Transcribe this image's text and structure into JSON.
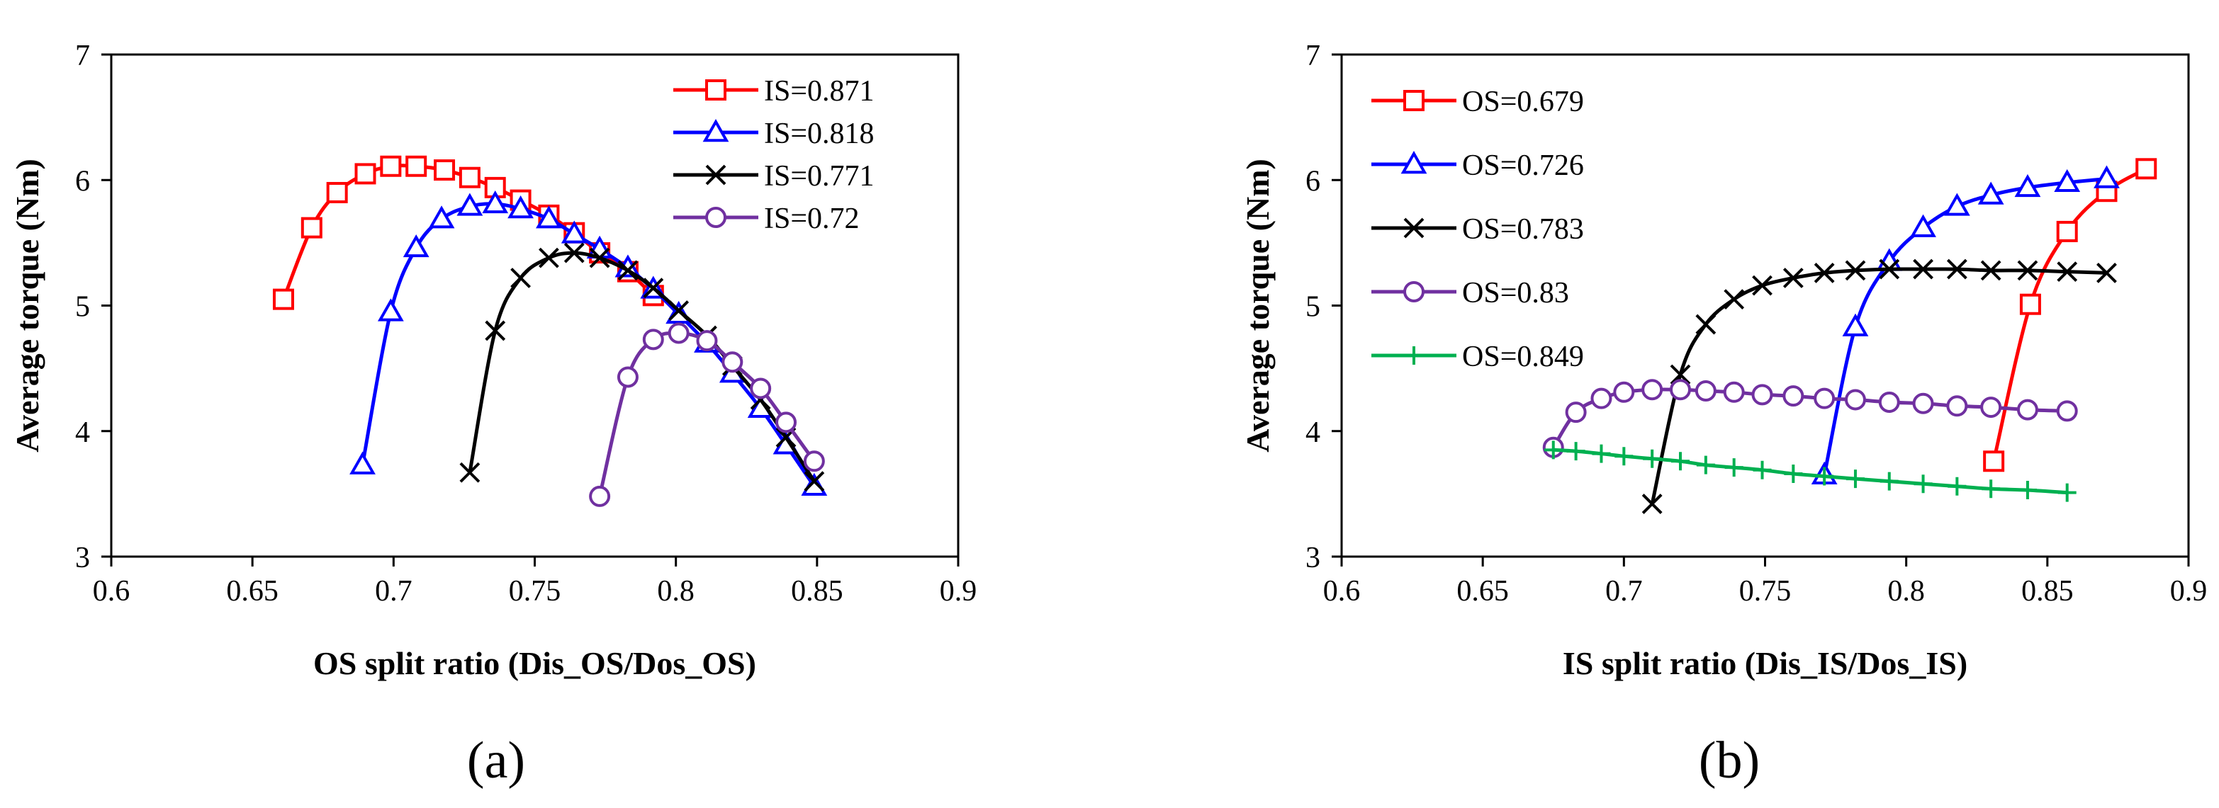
{
  "panels": [
    {
      "label": "(a)"
    },
    {
      "label": "(b)"
    }
  ],
  "chart_data": [
    {
      "type": "line",
      "xlabel": "OS split ratio (Dis_OS/Dos_OS)",
      "ylabel": "Average torque (Nm)",
      "xlim": [
        0.6,
        0.9
      ],
      "ylim": [
        3,
        7
      ],
      "x_ticks": [
        "0.6",
        "0.65",
        "0.7",
        "0.75",
        "0.8",
        "0.85",
        "0.9"
      ],
      "y_ticks": [
        "3",
        "4",
        "5",
        "6",
        "7"
      ],
      "grid": false,
      "legend_position": "top-right",
      "series": [
        {
          "name": "IS=0.871",
          "color": "#ff0000",
          "marker": "square",
          "x": [
            0.661,
            0.671,
            0.68,
            0.69,
            0.699,
            0.708,
            0.718,
            0.727,
            0.736,
            0.745,
            0.755,
            0.764,
            0.773,
            0.783,
            0.792
          ],
          "y": [
            5.05,
            5.62,
            5.9,
            6.05,
            6.11,
            6.11,
            6.08,
            6.02,
            5.94,
            5.84,
            5.72,
            5.58,
            5.42,
            5.27,
            5.08
          ]
        },
        {
          "name": "IS=0.818",
          "color": "#0000ff",
          "marker": "triangle",
          "x": [
            0.689,
            0.699,
            0.708,
            0.717,
            0.727,
            0.736,
            0.745,
            0.755,
            0.764,
            0.773,
            0.783,
            0.792,
            0.801,
            0.811,
            0.82,
            0.83,
            0.839,
            0.849
          ],
          "y": [
            3.73,
            4.95,
            5.46,
            5.69,
            5.79,
            5.81,
            5.77,
            5.69,
            5.57,
            5.45,
            5.3,
            5.13,
            4.93,
            4.7,
            4.46,
            4.18,
            3.89,
            3.56
          ]
        },
        {
          "name": "IS=0.771",
          "color": "#000000",
          "marker": "x",
          "x": [
            0.727,
            0.736,
            0.745,
            0.755,
            0.764,
            0.773,
            0.783,
            0.792,
            0.801,
            0.811,
            0.82,
            0.83,
            0.839,
            0.849
          ],
          "y": [
            3.67,
            4.8,
            5.22,
            5.38,
            5.42,
            5.38,
            5.28,
            5.14,
            4.96,
            4.76,
            4.52,
            4.25,
            3.95,
            3.6
          ]
        },
        {
          "name": "IS=0.72",
          "color": "#7030a0",
          "marker": "circle",
          "x": [
            0.773,
            0.783,
            0.792,
            0.801,
            0.811,
            0.82,
            0.83,
            0.839,
            0.849
          ],
          "y": [
            3.48,
            4.43,
            4.73,
            4.78,
            4.72,
            4.55,
            4.34,
            4.07,
            3.76
          ]
        }
      ]
    },
    {
      "type": "line",
      "xlabel": "IS split ratio (Dis_IS/Dos_IS)",
      "ylabel": "Average torque (Nm)",
      "xlim": [
        0.6,
        0.9
      ],
      "ylim": [
        3,
        7
      ],
      "x_ticks": [
        "0.6",
        "0.65",
        "0.7",
        "0.75",
        "0.8",
        "0.85",
        "0.9"
      ],
      "y_ticks": [
        "3",
        "4",
        "5",
        "6",
        "7"
      ],
      "grid": false,
      "legend_position": "top-left",
      "series": [
        {
          "name": "OS=0.679",
          "color": "#ff0000",
          "marker": "square",
          "x": [
            0.831,
            0.844,
            0.857,
            0.871,
            0.885
          ],
          "y": [
            3.76,
            5.01,
            5.59,
            5.91,
            6.09
          ]
        },
        {
          "name": "OS=0.726",
          "color": "#0000ff",
          "marker": "triangle",
          "x": [
            0.771,
            0.782,
            0.794,
            0.806,
            0.818,
            0.83,
            0.843,
            0.857,
            0.871
          ],
          "y": [
            3.65,
            4.83,
            5.35,
            5.62,
            5.79,
            5.88,
            5.94,
            5.98,
            6.01
          ]
        },
        {
          "name": "OS=0.783",
          "color": "#000000",
          "marker": "x",
          "x": [
            0.71,
            0.72,
            0.729,
            0.739,
            0.749,
            0.76,
            0.771,
            0.782,
            0.794,
            0.806,
            0.818,
            0.83,
            0.843,
            0.857,
            0.871
          ],
          "y": [
            3.42,
            4.45,
            4.85,
            5.05,
            5.16,
            5.22,
            5.26,
            5.28,
            5.29,
            5.29,
            5.29,
            5.28,
            5.28,
            5.27,
            5.26
          ]
        },
        {
          "name": "OS=0.83",
          "color": "#7030a0",
          "marker": "circle",
          "x": [
            0.675,
            0.683,
            0.692,
            0.7,
            0.71,
            0.72,
            0.729,
            0.739,
            0.749,
            0.76,
            0.771,
            0.782,
            0.794,
            0.806,
            0.818,
            0.83,
            0.843,
            0.857
          ],
          "y": [
            3.87,
            4.15,
            4.26,
            4.31,
            4.33,
            4.33,
            4.32,
            4.31,
            4.29,
            4.28,
            4.26,
            4.25,
            4.23,
            4.22,
            4.2,
            4.19,
            4.17,
            4.16
          ]
        },
        {
          "name": "OS=0.849",
          "color": "#00b050",
          "marker": "plus",
          "x": [
            0.675,
            0.683,
            0.692,
            0.7,
            0.71,
            0.72,
            0.729,
            0.739,
            0.749,
            0.76,
            0.771,
            0.782,
            0.794,
            0.806,
            0.818,
            0.83,
            0.843,
            0.857
          ],
          "y": [
            3.85,
            3.84,
            3.82,
            3.8,
            3.78,
            3.76,
            3.73,
            3.71,
            3.69,
            3.66,
            3.64,
            3.62,
            3.6,
            3.58,
            3.56,
            3.54,
            3.53,
            3.51
          ]
        }
      ]
    }
  ]
}
